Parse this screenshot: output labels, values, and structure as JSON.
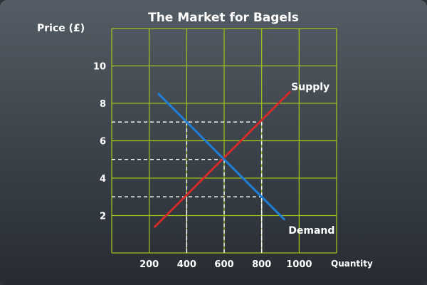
{
  "chart_data": {
    "type": "line",
    "title": "The Market for Bagels",
    "xlabel": "Quantity",
    "ylabel": "Price (£)",
    "xlim": [
      0,
      1200
    ],
    "ylim": [
      0,
      12
    ],
    "xticks": [
      200,
      400,
      600,
      800,
      1000
    ],
    "yticks": [
      2,
      4,
      6,
      8,
      10
    ],
    "grid": true,
    "series": [
      {
        "name": "Supply",
        "color": "#d42a2a",
        "x": [
          230,
          950
        ],
        "y": [
          1.4,
          8.6
        ]
      },
      {
        "name": "Demand",
        "color": "#1f7fd6",
        "x": [
          250,
          920
        ],
        "y": [
          8.5,
          1.8
        ]
      }
    ],
    "reference_points": [
      {
        "x": 400,
        "y": 7
      },
      {
        "x": 600,
        "y": 5
      },
      {
        "x": 800,
        "y": 7
      },
      {
        "x": 400,
        "y": 3
      },
      {
        "x": 800,
        "y": 3
      }
    ],
    "colors": {
      "grid": "#9fbf1e",
      "background": "#3a4148",
      "text": "#ffffff"
    }
  }
}
